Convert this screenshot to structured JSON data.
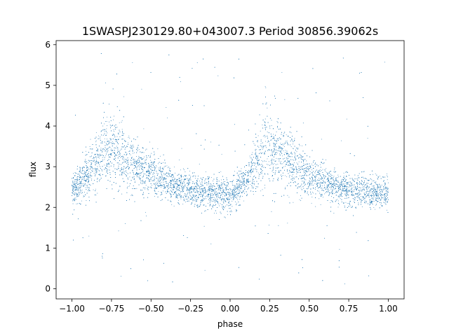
{
  "chart_data": {
    "type": "scatter",
    "title": "1SWASPJ230129.80+043007.3 Period 30856.39062s",
    "xlabel": "phase",
    "ylabel": "flux",
    "xlim": [
      -1.1,
      1.1
    ],
    "ylim": [
      -0.25,
      6.1
    ],
    "xticks": [
      -1.0,
      -0.75,
      -0.5,
      -0.25,
      0.0,
      0.25,
      0.5,
      0.75,
      1.0
    ],
    "xtick_labels": [
      "−1.00",
      "−0.75",
      "−0.50",
      "−0.25",
      "0.00",
      "0.25",
      "0.50",
      "0.75",
      "1.00"
    ],
    "yticks": [
      0,
      1,
      2,
      3,
      4,
      5,
      6
    ],
    "ytick_labels": [
      "0",
      "1",
      "2",
      "3",
      "4",
      "5",
      "6"
    ],
    "grid": false,
    "marker_color": "#1f77b4",
    "series": [
      {
        "phase": [
          -1.0,
          -0.9,
          -0.8,
          -0.75,
          -0.7,
          -0.6,
          -0.5,
          -0.4,
          -0.3,
          -0.2,
          -0.1,
          0.0,
          0.1,
          0.2,
          0.25,
          0.3,
          0.4,
          0.5,
          0.6,
          0.7,
          0.8,
          0.9,
          1.0
        ],
        "flux_mean": [
          2.4,
          2.8,
          3.35,
          3.5,
          3.35,
          3.05,
          2.8,
          2.6,
          2.48,
          2.4,
          2.35,
          2.3,
          2.6,
          3.3,
          3.5,
          3.35,
          3.05,
          2.8,
          2.6,
          2.48,
          2.4,
          2.35,
          2.35
        ]
      }
    ]
  }
}
